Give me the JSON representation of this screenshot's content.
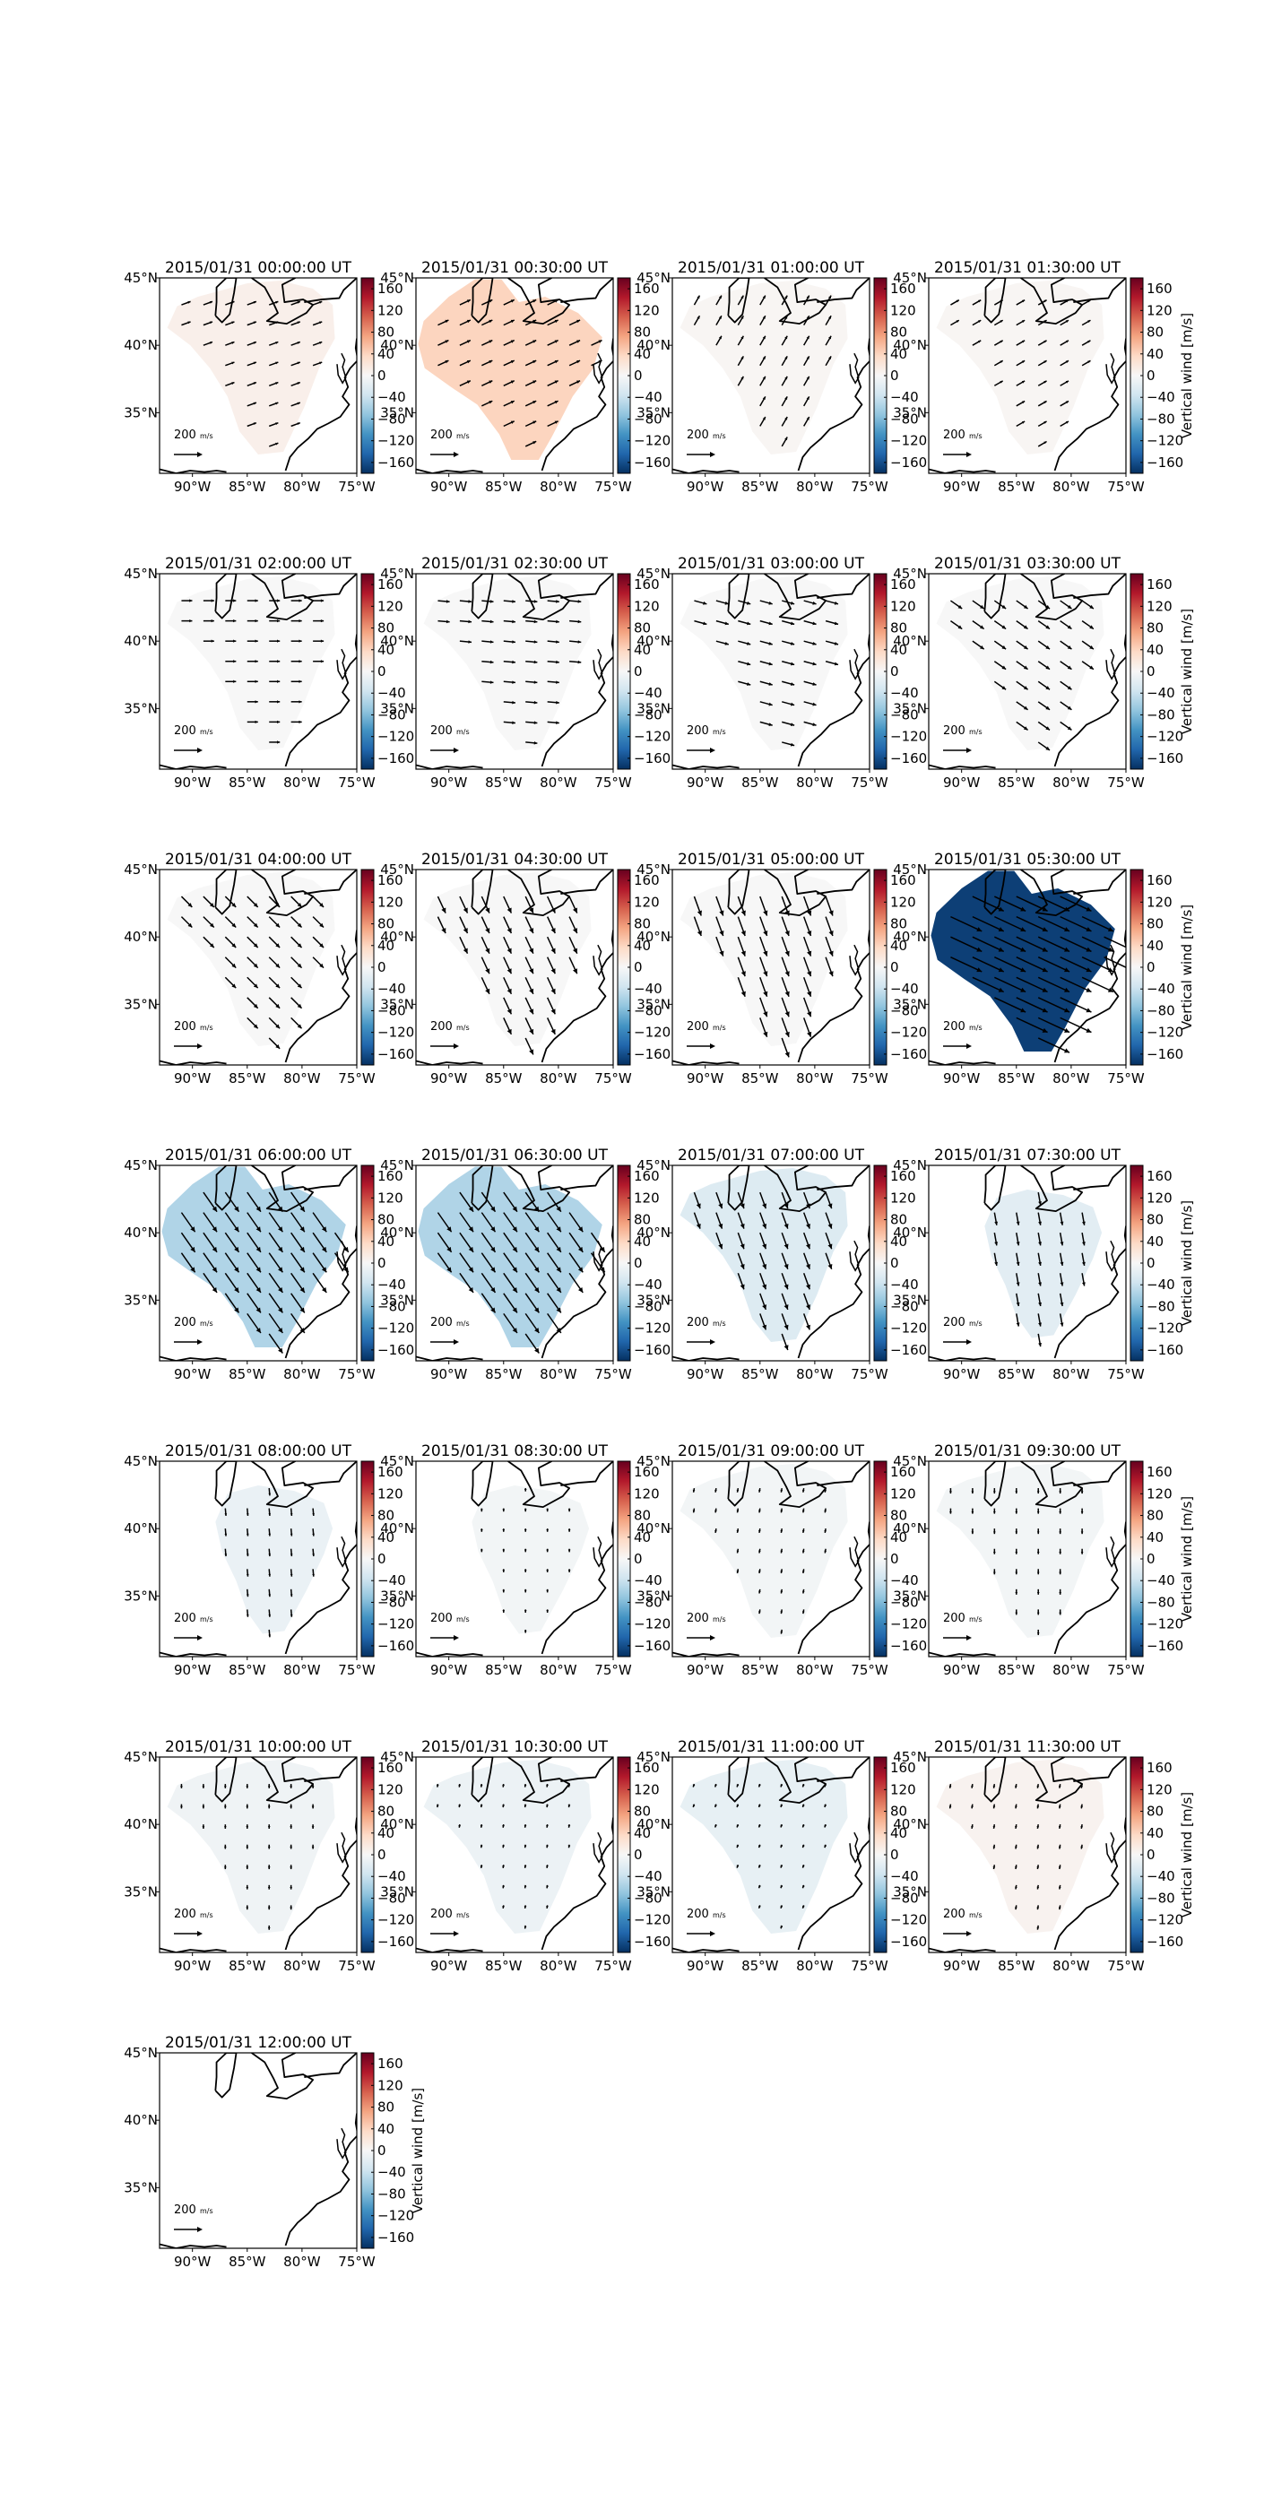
{
  "figure": {
    "panel_titles": [
      "2015/01/31 00:00:00 UT",
      "2015/01/31 00:30:00 UT",
      "2015/01/31 01:00:00 UT",
      "2015/01/31 01:30:00 UT",
      "2015/01/31 02:00:00 UT",
      "2015/01/31 02:30:00 UT",
      "2015/01/31 03:00:00 UT",
      "2015/01/31 03:30:00 UT",
      "2015/01/31 04:00:00 UT",
      "2015/01/31 04:30:00 UT",
      "2015/01/31 05:00:00 UT",
      "2015/01/31 05:30:00 UT",
      "2015/01/31 06:00:00 UT",
      "2015/01/31 06:30:00 UT",
      "2015/01/31 07:00:00 UT",
      "2015/01/31 07:30:00 UT",
      "2015/01/31 08:00:00 UT",
      "2015/01/31 08:30:00 UT",
      "2015/01/31 09:00:00 UT",
      "2015/01/31 09:30:00 UT",
      "2015/01/31 10:00:00 UT",
      "2015/01/31 10:30:00 UT",
      "2015/01/31 11:00:00 UT",
      "2015/01/31 11:30:00 UT",
      "2015/01/31 12:00:00 UT"
    ],
    "x_tick_labels": [
      "90°W",
      "85°W",
      "80°W",
      "75°W"
    ],
    "y_tick_labels": [
      "45°N",
      "40°N",
      "35°N"
    ],
    "colorbar_tick_labels": [
      "160",
      "120",
      "80",
      "40",
      "0",
      "−40",
      "−80",
      "−120",
      "−160"
    ],
    "colorbar_label": "Vertical wind [m/s]",
    "reference_arrow_label": "200",
    "reference_arrow_unit": "m/s",
    "colormap": [
      "#053061",
      "#2166ac",
      "#4393c3",
      "#92c5de",
      "#d1e5f0",
      "#f7f7f7",
      "#fddbc7",
      "#f4a582",
      "#d6604d",
      "#b2182b",
      "#67001f"
    ]
  },
  "chart_data": {
    "type": "heatmap",
    "subtype": "map panels with vertical wind fill and horizontal wind vectors",
    "xlim": [
      -93,
      -75
    ],
    "ylim": [
      30.5,
      45
    ],
    "color_range": [
      -180,
      180
    ],
    "colorbar_ticks": [
      160,
      120,
      80,
      40,
      0,
      -40,
      -80,
      -120,
      -160
    ],
    "reference_vector": 200,
    "panels": [
      {
        "time": "00:00",
        "vertical_wind": 10,
        "region": "narrow",
        "vec_scale": 0.45,
        "vec_rot": -20
      },
      {
        "time": "00:30",
        "vertical_wind": 40,
        "region": "wide",
        "vec_scale": 0.55,
        "vec_rot": -25
      },
      {
        "time": "01:00",
        "vertical_wind": 3,
        "region": "narrow",
        "vec_scale": 0.5,
        "vec_rot": -60
      },
      {
        "time": "01:30",
        "vertical_wind": 3,
        "region": "narrow",
        "vec_scale": 0.45,
        "vec_rot": -30
      },
      {
        "time": "02:00",
        "vertical_wind": 0,
        "region": "narrow",
        "vec_scale": 0.5,
        "vec_rot": 0
      },
      {
        "time": "02:30",
        "vertical_wind": 0,
        "region": "narrow",
        "vec_scale": 0.55,
        "vec_rot": 5
      },
      {
        "time": "03:00",
        "vertical_wind": 0,
        "region": "narrow",
        "vec_scale": 0.6,
        "vec_rot": 15
      },
      {
        "time": "03:30",
        "vertical_wind": 0,
        "region": "narrow",
        "vec_scale": 0.65,
        "vec_rot": 35
      },
      {
        "time": "04:00",
        "vertical_wind": 0,
        "region": "narrow",
        "vec_scale": 0.7,
        "vec_rot": 45
      },
      {
        "time": "04:30",
        "vertical_wind": 0,
        "region": "narrow",
        "vec_scale": 0.85,
        "vec_rot": 65
      },
      {
        "time": "05:00",
        "vertical_wind": 0,
        "region": "narrow",
        "vec_scale": 0.95,
        "vec_rot": 70
      },
      {
        "time": "05:30",
        "vertical_wind": -170,
        "region": "wide",
        "vec_scale": 1.6,
        "vec_rot": 25
      },
      {
        "time": "06:00",
        "vertical_wind": -55,
        "region": "wide",
        "vec_scale": 1.1,
        "vec_rot": 55
      },
      {
        "time": "06:30",
        "vertical_wind": -55,
        "region": "wide",
        "vec_scale": 1.1,
        "vec_rot": 55
      },
      {
        "time": "07:00",
        "vertical_wind": -25,
        "region": "narrow",
        "vec_scale": 0.8,
        "vec_rot": 70
      },
      {
        "time": "07:30",
        "vertical_wind": -20,
        "region": "small",
        "vec_scale": 0.6,
        "vec_rot": 80
      },
      {
        "time": "08:00",
        "vertical_wind": -12,
        "region": "small",
        "vec_scale": 0.35,
        "vec_rot": 85
      },
      {
        "time": "08:30",
        "vertical_wind": -5,
        "region": "small",
        "vec_scale": 0.15,
        "vec_rot": 90
      },
      {
        "time": "09:00",
        "vertical_wind": -5,
        "region": "narrow",
        "vec_scale": 0.2,
        "vec_rot": 100
      },
      {
        "time": "09:30",
        "vertical_wind": -5,
        "region": "narrow",
        "vec_scale": 0.25,
        "vec_rot": 90
      },
      {
        "time": "10:00",
        "vertical_wind": -8,
        "region": "narrow",
        "vec_scale": 0.2,
        "vec_rot": 90
      },
      {
        "time": "10:30",
        "vertical_wind": -10,
        "region": "narrow",
        "vec_scale": 0.15,
        "vec_rot": 100
      },
      {
        "time": "11:00",
        "vertical_wind": -15,
        "region": "narrow",
        "vec_scale": 0.15,
        "vec_rot": 110
      },
      {
        "time": "11:30",
        "vertical_wind": 6,
        "region": "narrow",
        "vec_scale": 0.2,
        "vec_rot": 100
      },
      {
        "time": "12:00",
        "vertical_wind": null,
        "region": "none",
        "vec_scale": 0,
        "vec_rot": 0
      }
    ]
  }
}
